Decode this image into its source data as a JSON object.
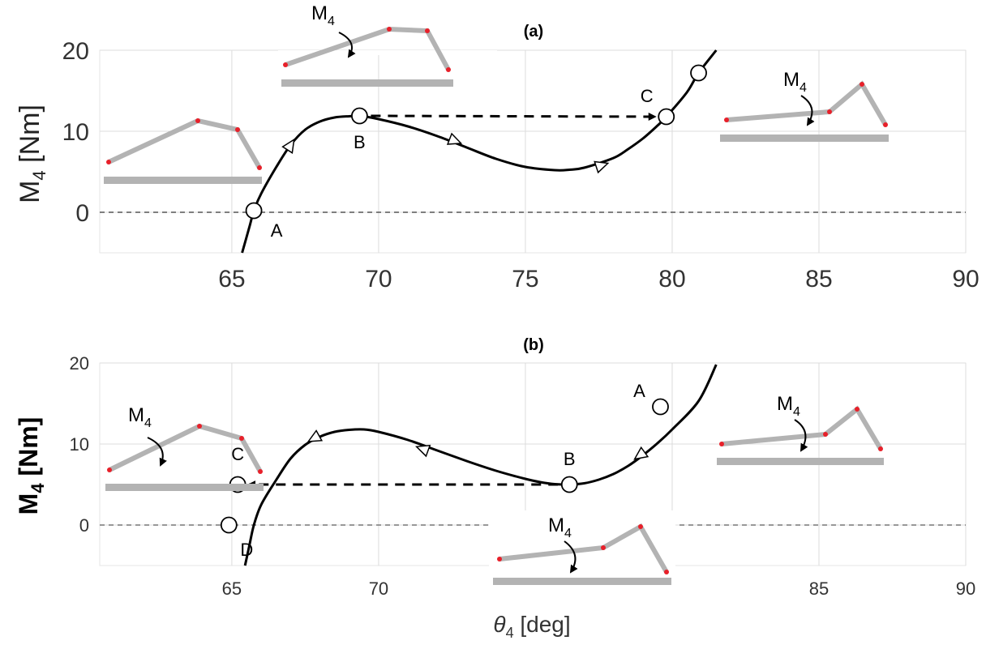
{
  "chart_data": [
    {
      "id": "a",
      "type": "line",
      "title": "(a)",
      "ylabel": "M4 [Nm]",
      "xlim": [
        60.5,
        90
      ],
      "ylim": [
        -5,
        20
      ],
      "xticks": [
        65,
        70,
        75,
        80,
        85,
        90
      ],
      "yticks": [
        0,
        10,
        20
      ],
      "grid": true,
      "baseline_y": 0,
      "curve": {
        "x": [
          65.35,
          65.6,
          65.75,
          66.0,
          66.5,
          67.0,
          67.5,
          68.0,
          68.5,
          69.0,
          69.35,
          70.0,
          71.0,
          72.0,
          73.0,
          74.0,
          75.0,
          76.0,
          76.5,
          77.0,
          78.0,
          78.5,
          79.0,
          79.5,
          79.8,
          80.5,
          80.9,
          81.5
        ],
        "y": [
          -5.0,
          -1.8,
          0.2,
          2.3,
          5.5,
          8.3,
          10.2,
          11.2,
          11.7,
          11.85,
          11.9,
          11.5,
          10.6,
          9.4,
          8.0,
          6.6,
          5.6,
          5.2,
          5.25,
          5.5,
          6.7,
          7.8,
          9.1,
          10.7,
          11.8,
          14.8,
          17.2,
          20.0
        ]
      },
      "arrows": [
        {
          "x": 67.0,
          "y": 8.3,
          "dir": "forward"
        },
        {
          "x": 72.6,
          "y": 8.8,
          "dir": "forward"
        },
        {
          "x": 77.6,
          "y": 5.8,
          "dir": "forward"
        }
      ],
      "jump": {
        "from": "B",
        "to": "C"
      },
      "points": [
        {
          "label": "A",
          "x": 65.75,
          "y": 0.2,
          "label_pos": "below-right"
        },
        {
          "label": "B",
          "x": 69.35,
          "y": 11.9,
          "label_pos": "below"
        },
        {
          "label": "C",
          "x": 79.8,
          "y": 11.8,
          "label_pos": "above-left"
        },
        {
          "label": "",
          "x": 80.9,
          "y": 17.2,
          "label_pos": "none"
        }
      ],
      "moment_label": "M",
      "moment_sub": "4"
    },
    {
      "id": "b",
      "type": "line",
      "title": "(b)",
      "ylabel": "M4 [Nm]",
      "xlabel": "θ4 [deg]",
      "xlim": [
        60.5,
        90
      ],
      "ylim": [
        -5,
        20
      ],
      "xticks": [
        65,
        70,
        75,
        80,
        85,
        90
      ],
      "xtick_labels_shown": [
        "65",
        "70",
        "",
        "",
        "85",
        "90"
      ],
      "yticks": [
        0,
        10,
        20
      ],
      "grid": true,
      "baseline_y": 0,
      "curve": {
        "x": [
          65.45,
          65.6,
          65.75,
          66.0,
          66.5,
          67.0,
          67.5,
          68.0,
          68.5,
          69.0,
          69.5,
          70.0,
          71.0,
          72.0,
          73.0,
          74.0,
          75.0,
          75.5,
          76.0,
          76.5,
          77.0,
          77.5,
          78.0,
          78.5,
          79.0,
          79.5,
          80.0,
          80.9,
          81.5
        ],
        "y": [
          -5.0,
          -2.5,
          0.0,
          2.5,
          5.5,
          8.2,
          9.9,
          10.9,
          11.5,
          11.75,
          11.8,
          11.5,
          10.5,
          9.2,
          7.9,
          6.7,
          5.7,
          5.3,
          5.05,
          5.0,
          5.15,
          5.6,
          6.3,
          7.3,
          8.6,
          10.1,
          11.8,
          15.3,
          19.8
        ]
      },
      "arrows": [
        {
          "x": 78.9,
          "y": 8.6,
          "dir": "backward"
        },
        {
          "x": 71.5,
          "y": 9.4,
          "dir": "backward"
        },
        {
          "x": 67.8,
          "y": 10.7,
          "dir": "backward"
        }
      ],
      "jump": {
        "from": "B",
        "to": "C"
      },
      "points": [
        {
          "label": "A",
          "x": 79.6,
          "y": 14.6,
          "label_pos": "above-left"
        },
        {
          "label": "B",
          "x": 76.5,
          "y": 5.0,
          "label_pos": "above"
        },
        {
          "label": "C",
          "x": 65.2,
          "y": 5.0,
          "label_pos": "above-right"
        },
        {
          "label": "D",
          "x": 64.9,
          "y": 0.0,
          "label_pos": "below-right"
        }
      ],
      "moment_label": "M",
      "moment_sub": "4"
    }
  ],
  "colors": {
    "curve": "#000000",
    "link": "#b3b3b3",
    "joint": "#e8202a",
    "grid": "#dcdcdc",
    "baseline": "#555555"
  }
}
